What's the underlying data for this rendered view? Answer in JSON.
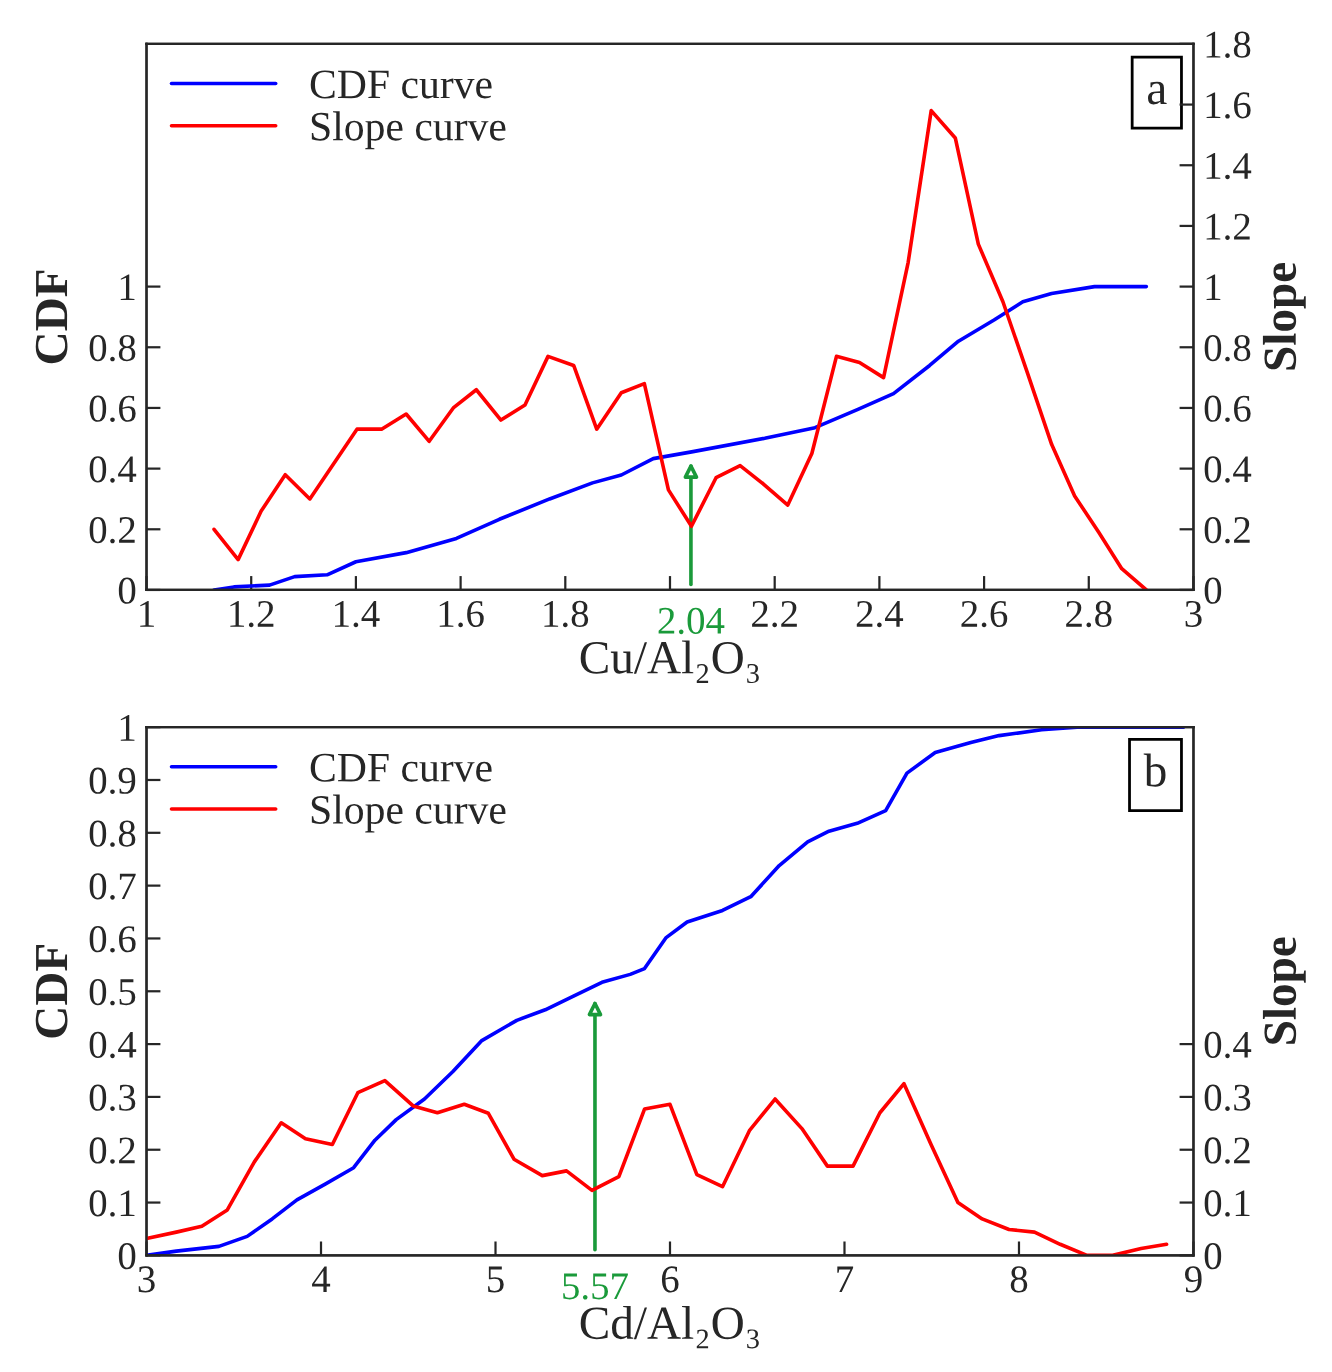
{
  "chart_data": [
    {
      "type": "line",
      "xlabel": "Cu/Al₂O₃",
      "ylabel": "CDF",
      "y2label": "Slope",
      "xlim": [
        1,
        3
      ],
      "xticks": [
        1,
        1.2,
        1.4,
        1.6,
        1.8,
        {
          "value": 2,
          "label": null
        },
        2.2,
        2.4,
        2.6,
        2.8,
        3
      ],
      "ylim": [
        0,
        1.8
      ],
      "yticks": [
        0,
        0.2,
        0.4,
        0.6,
        0.8,
        1
      ],
      "y2lim": [
        0,
        1.8
      ],
      "y2ticks": [
        0,
        0.2,
        0.4,
        0.6,
        0.8,
        1,
        1.2,
        1.4,
        1.6,
        1.8
      ],
      "legend": "top left",
      "grid": false,
      "annotations": [
        "a",
        {
          "text": "2.04",
          "x": 2.04,
          "y": 0.44
        }
      ],
      "series": [
        {
          "name": "CDF curve",
          "color": "#0000ff",
          "x": [
            1.129,
            1.167,
            1.235,
            1.283,
            1.345,
            1.4,
            1.496,
            1.592,
            1.674,
            1.77,
            1.852,
            1.907,
            1.968,
            2.044,
            2.181,
            2.277,
            2.359,
            2.427,
            2.496,
            2.551,
            2.619,
            2.674,
            2.729,
            2.811,
            2.91
          ],
          "values": [
            0,
            0.01,
            0.016,
            0.044,
            0.05,
            0.093,
            0.123,
            0.17,
            0.233,
            0.3,
            0.353,
            0.379,
            0.433,
            0.456,
            0.5,
            0.535,
            0.595,
            0.647,
            0.74,
            0.82,
            0.89,
            0.95,
            0.977,
            1.0,
            1.0
          ]
        },
        {
          "name": "Slope curve",
          "color": "#ff0000",
          "axis": "y2",
          "x": [
            1.129,
            1.175,
            1.219,
            1.265,
            1.312,
            1.402,
            1.449,
            1.496,
            1.54,
            1.586,
            1.63,
            1.677,
            1.723,
            1.767,
            1.816,
            1.86,
            1.907,
            1.951,
            1.997,
            2.041,
            2.088,
            2.134,
            2.178,
            2.225,
            2.271,
            2.318,
            2.362,
            2.408,
            2.455,
            2.499,
            2.545,
            2.589,
            2.636,
            2.682,
            2.729,
            2.773,
            2.819,
            2.863,
            2.91
          ],
          "values": [
            0.2,
            0.1,
            0.26,
            0.38,
            0.3,
            0.53,
            0.53,
            0.58,
            0.49,
            0.6,
            0.66,
            0.56,
            0.61,
            0.77,
            0.74,
            0.53,
            0.65,
            0.68,
            0.33,
            0.21,
            0.37,
            0.41,
            0.35,
            0.28,
            0.45,
            0.77,
            0.75,
            0.7,
            1.08,
            1.58,
            1.49,
            1.14,
            0.95,
            0.72,
            0.48,
            0.31,
            0.19,
            0.07,
            0.0
          ]
        }
      ]
    },
    {
      "type": "line",
      "xlabel": "Cd/Al₂O₃",
      "ylabel": "CDF",
      "y2label": "Slope",
      "xlim": [
        3,
        9
      ],
      "xticks": [
        3,
        4,
        5,
        6,
        7,
        8,
        9
      ],
      "ylim": [
        0,
        1
      ],
      "yticks": [
        0,
        0.1,
        0.2,
        0.3,
        0.4,
        0.5,
        0.6,
        0.7,
        0.8,
        0.9,
        1
      ],
      "y2lim": [
        0,
        1
      ],
      "y2ticks": [
        0,
        0.1,
        0.2,
        0.3,
        0.4
      ],
      "legend": "top left",
      "grid": false,
      "annotations": [
        "b",
        {
          "text": "5.57",
          "x": 5.57,
          "y": 0.495
        }
      ],
      "series": [
        {
          "name": "CDF curve",
          "color": "#0000ff",
          "x": [
            3.0,
            3.171,
            3.415,
            3.577,
            3.72,
            3.862,
            4.024,
            4.187,
            4.309,
            4.431,
            4.593,
            4.756,
            4.919,
            5.122,
            5.285,
            5.447,
            5.61,
            5.772,
            5.854,
            5.976,
            6.098,
            6.301,
            6.463,
            6.626,
            6.789,
            6.911,
            7.073,
            7.236,
            7.358,
            7.52,
            7.724,
            7.886,
            8.13,
            8.333,
            8.943
          ],
          "values": [
            0,
            0.008,
            0.017,
            0.036,
            0.069,
            0.105,
            0.135,
            0.166,
            0.218,
            0.257,
            0.296,
            0.348,
            0.406,
            0.445,
            0.465,
            0.491,
            0.517,
            0.532,
            0.543,
            0.601,
            0.631,
            0.653,
            0.679,
            0.738,
            0.783,
            0.803,
            0.818,
            0.842,
            0.913,
            0.952,
            0.971,
            0.984,
            0.995,
            1.0,
            1.0
          ]
        },
        {
          "name": "Slope curve",
          "color": "#ff0000",
          "axis": "y2",
          "x": [
            3.0,
            3.171,
            3.317,
            3.463,
            3.618,
            3.772,
            3.911,
            4.065,
            4.211,
            4.366,
            4.528,
            4.667,
            4.821,
            4.959,
            5.106,
            5.268,
            5.407,
            5.553,
            5.707,
            5.854,
            6.0,
            6.154,
            6.301,
            6.455,
            6.602,
            6.756,
            6.902,
            7.049,
            7.203,
            7.341,
            7.496,
            7.65,
            7.789,
            7.943,
            8.089,
            8.236,
            8.39,
            8.537,
            8.7,
            8.846
          ],
          "values": [
            0.032,
            0.044,
            0.055,
            0.086,
            0.177,
            0.251,
            0.221,
            0.21,
            0.308,
            0.331,
            0.283,
            0.27,
            0.286,
            0.269,
            0.182,
            0.151,
            0.16,
            0.123,
            0.149,
            0.277,
            0.286,
            0.153,
            0.13,
            0.236,
            0.296,
            0.24,
            0.169,
            0.169,
            0.27,
            0.325,
            0.21,
            0.1,
            0.069,
            0.049,
            0.044,
            0.021,
            0.0,
            0.0,
            0.013,
            0.021
          ]
        }
      ]
    }
  ]
}
